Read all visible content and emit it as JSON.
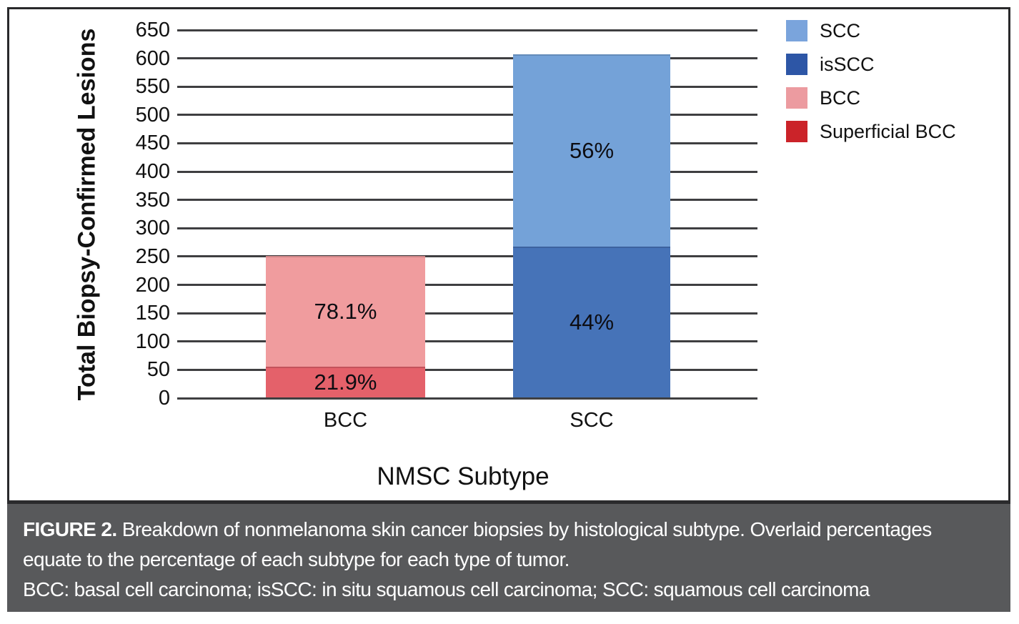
{
  "caption": {
    "label": "FIGURE 2.",
    "text": "Breakdown of nonmelanoma skin cancer biopsies by histological subtype. Overlaid percentages equate to the percentage of each subtype for each type of tumor.",
    "abbreviations": "BCC: basal cell carcinoma; isSCC: in situ squamous cell carcinoma; SCC: squamous cell carcinoma"
  },
  "colors": {
    "caption_bg": "#58595b",
    "caption_text": "#ffffff",
    "gridline": "#3f3f41",
    "frame_border": "#29292b"
  },
  "chart_data": {
    "type": "bar",
    "stacked": true,
    "title": "",
    "xlabel": "NMSC Subtype",
    "ylabel": "Total Biopsy-Confirmed Lesions",
    "ylim": [
      0,
      650
    ],
    "ytick_step": 50,
    "yticks": [
      0,
      50,
      100,
      150,
      200,
      250,
      300,
      350,
      400,
      450,
      500,
      550,
      600,
      650
    ],
    "grid": true,
    "legend_position": "top-right",
    "categories": [
      "BCC",
      "SCC"
    ],
    "bars": [
      {
        "category": "BCC",
        "total": 251,
        "segments": [
          {
            "name": "Superficial BCC",
            "value": 55,
            "label": "21.9%",
            "color": "#e4616a"
          },
          {
            "name": "BCC",
            "value": 196,
            "label": "78.1%",
            "color": "#f09c9e"
          }
        ]
      },
      {
        "category": "SCC",
        "total": 607,
        "segments": [
          {
            "name": "isSCC",
            "value": 267,
            "label": "44%",
            "color": "#4673b8"
          },
          {
            "name": "SCC",
            "value": 340,
            "label": "56%",
            "color": "#74a2d8"
          }
        ]
      }
    ],
    "legend": [
      {
        "label": "SCC",
        "color": "#7aa4dc"
      },
      {
        "label": "isSCC",
        "color": "#2d56a6"
      },
      {
        "label": "BCC",
        "color": "#ec9ba0"
      },
      {
        "label": "Superficial BCC",
        "color": "#cb2329"
      }
    ]
  }
}
